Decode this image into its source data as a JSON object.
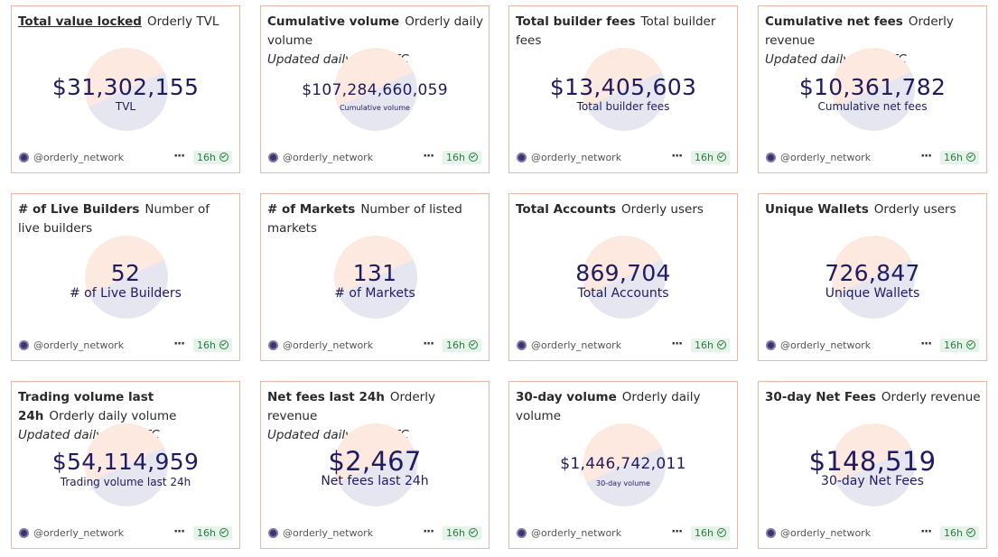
{
  "cards": [
    {
      "title": "Total value locked",
      "subtitle": "Orderly TVL",
      "updated": "",
      "value": "$31,302,155",
      "label": "TVL",
      "author": "@orderly_network",
      "age": "16h"
    },
    {
      "title": "Cumulative volume",
      "subtitle": "Orderly daily volume",
      "updated": "Updated daily at 0 UTC",
      "value": "$107,284,660,059",
      "label": "Cumulative volume",
      "author": "@orderly_network",
      "age": "16h"
    },
    {
      "title": "Total builder fees",
      "subtitle": "Total builder fees",
      "updated": "",
      "value": "$13,405,603",
      "label": "Total builder fees",
      "author": "@orderly_network",
      "age": "16h"
    },
    {
      "title": "Cumulative net fees",
      "subtitle": "Orderly revenue",
      "updated": "Updated daily at 0 UTC",
      "value": "$10,361,782",
      "label": "Cumulative net fees",
      "author": "@orderly_network",
      "age": "16h"
    },
    {
      "title": "# of Live Builders",
      "subtitle": "Number of live builders",
      "updated": "",
      "value": "52",
      "label": "# of Live Builders",
      "author": "@orderly_network",
      "age": "16h"
    },
    {
      "title": "# of Markets",
      "subtitle": "Number of listed markets",
      "updated": "",
      "value": "131",
      "label": "# of Markets",
      "author": "@orderly_network",
      "age": "16h"
    },
    {
      "title": "Total Accounts",
      "subtitle": "Orderly users",
      "updated": "",
      "value": "869,704",
      "label": "Total Accounts",
      "author": "@orderly_network",
      "age": "16h"
    },
    {
      "title": "Unique Wallets",
      "subtitle": "Orderly users",
      "updated": "",
      "value": "726,847",
      "label": "Unique Wallets",
      "author": "@orderly_network",
      "age": "16h"
    },
    {
      "title": "Trading volume last 24h",
      "subtitle": "Orderly daily volume",
      "updated": "Updated daily at 0 UTC",
      "value": "$54,114,959",
      "label": "Trading volume last 24h",
      "author": "@orderly_network",
      "age": "16h"
    },
    {
      "title": "Net fees last 24h",
      "subtitle": "Orderly revenue",
      "updated": "Updated daily at 0 UTC",
      "value": "$2,467",
      "label": "Net fees last 24h",
      "author": "@orderly_network",
      "age": "16h"
    },
    {
      "title": "30-day volume",
      "subtitle": "Orderly daily volume",
      "updated": "",
      "value": "$1,446,742,011",
      "label": "30-day volume",
      "author": "@orderly_network",
      "age": "16h"
    },
    {
      "title": "30-day Net Fees",
      "subtitle": "Orderly revenue",
      "updated": "",
      "value": "$148,519",
      "label": "30-day Net Fees",
      "author": "@orderly_network",
      "age": "16h"
    }
  ]
}
